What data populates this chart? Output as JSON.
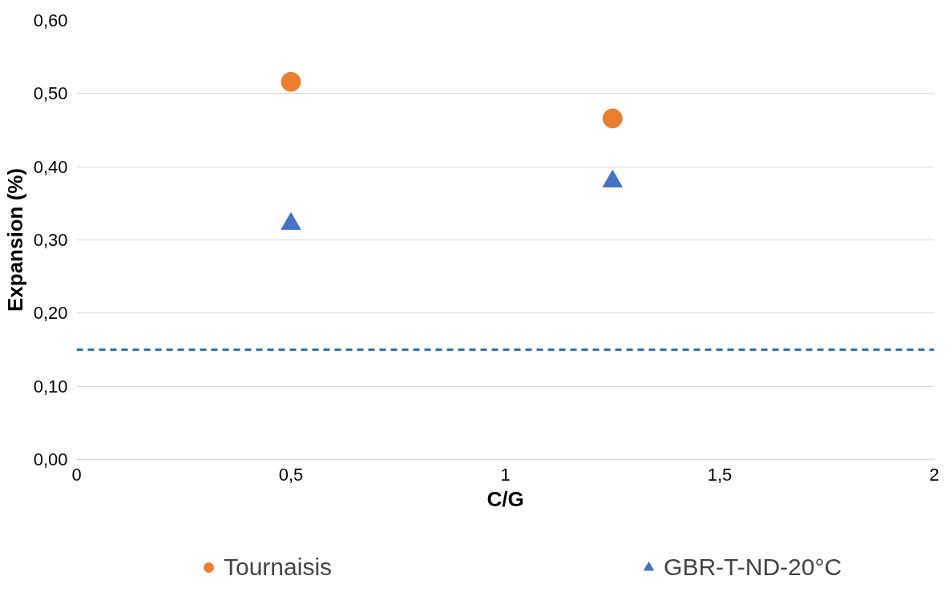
{
  "chart_data": {
    "type": "scatter",
    "xlabel": "C/G",
    "ylabel": "Expansion (%)",
    "x": [
      0.5,
      1.25
    ],
    "series": [
      {
        "name": "Tournaisis",
        "color": "#ed7d31",
        "marker": "circle",
        "values": [
          0.516,
          0.466
        ]
      },
      {
        "name": "GBR-T-ND-20°C",
        "color": "#4472c4",
        "marker": "triangle",
        "values": [
          0.322,
          0.38
        ]
      }
    ],
    "xlim": [
      0,
      2
    ],
    "xticks": [
      {
        "value": 0,
        "label": "0"
      },
      {
        "value": 0.5,
        "label": "0,5"
      },
      {
        "value": 1,
        "label": "1"
      },
      {
        "value": 1.5,
        "label": "1,5"
      },
      {
        "value": 2,
        "label": "2"
      }
    ],
    "ylim": [
      0,
      0.6
    ],
    "yticks": [
      {
        "value": 0,
        "label": "0,00"
      },
      {
        "value": 0.1,
        "label": "0,10"
      },
      {
        "value": 0.2,
        "label": "0,20"
      },
      {
        "value": 0.3,
        "label": "0,30"
      },
      {
        "value": 0.4,
        "label": "0,40"
      },
      {
        "value": 0.5,
        "label": "0,50"
      },
      {
        "value": 0.6,
        "label": "0,60"
      }
    ],
    "ref_lines": [
      {
        "axis": "y",
        "value": 0.15,
        "color": "#2e75b6",
        "line_style": "dashed"
      }
    ],
    "grid": "y",
    "legend": "bottom"
  }
}
